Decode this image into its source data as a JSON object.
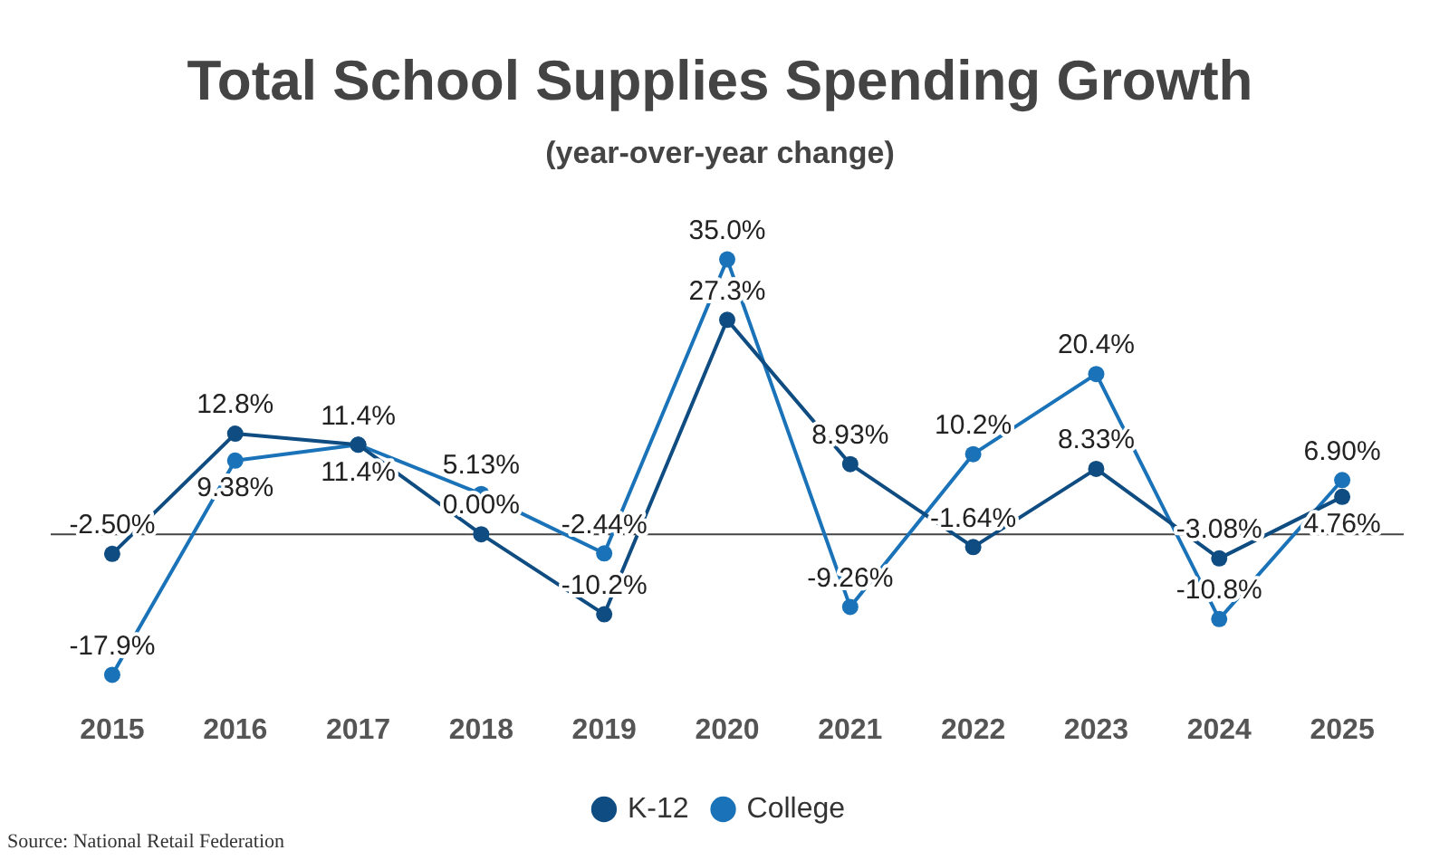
{
  "chart_data": {
    "type": "line",
    "title": "Total School Supplies Spending Growth",
    "subtitle": "(year-over-year change)",
    "categories": [
      "2015",
      "2016",
      "2017",
      "2018",
      "2019",
      "2020",
      "2021",
      "2022",
      "2023",
      "2024",
      "2025"
    ],
    "series": [
      {
        "name": "K-12",
        "color": "#0f4c81",
        "values": [
          -2.5,
          12.8,
          11.4,
          0,
          -10.2,
          27.3,
          8.93,
          -1.64,
          8.33,
          -3.08,
          4.76
        ],
        "value_labels": [
          "-2.50%",
          "12.8%",
          "11.4%",
          "0.00%",
          "-10.2%",
          "27.3%",
          "8.93%",
          "-1.64%",
          "8.33%",
          "-3.08%",
          "4.76%"
        ]
      },
      {
        "name": "College",
        "color": "#1a73b8",
        "values": [
          -17.9,
          9.38,
          11.4,
          5.13,
          -2.44,
          35.0,
          -9.26,
          10.2,
          20.4,
          -10.8,
          6.9
        ],
        "value_labels": [
          "-17.9%",
          "9.38%",
          "11.4%",
          "5.13%",
          "-2.44%",
          "35.0%",
          "-9.26%",
          "10.2%",
          "20.4%",
          "-10.8%",
          "6.90%"
        ]
      }
    ],
    "tick_labels": "x",
    "grid": false,
    "legend": "bottom",
    "marker": "circle",
    "line_style": "solid",
    "ref_lines": [
      {
        "axis": "y",
        "value": 0,
        "color": "#444444"
      }
    ],
    "annotations": [
      "Source: National Retail Federation"
    ]
  }
}
